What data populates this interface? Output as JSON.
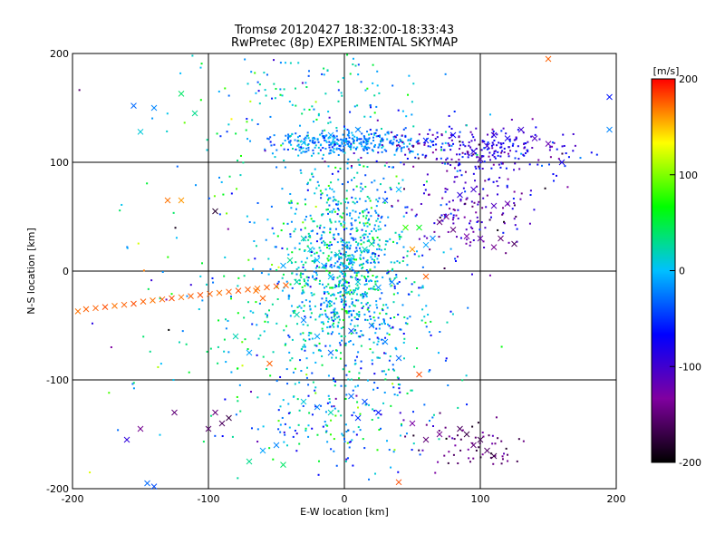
{
  "chart_data": {
    "type": "scatter",
    "title": "Tromsø 20120427 18:32:00-18:33:43",
    "subtitle": "RwPretec (8p) EXPERIMENTAL SKYMAP",
    "xlabel": "E-W location [km]",
    "ylabel": "N-S location [km]",
    "xlim": [
      -200,
      200
    ],
    "ylim": [
      -200,
      200
    ],
    "x_ticks": [
      "-200",
      "-100",
      "0",
      "100",
      "200"
    ],
    "y_ticks": [
      "-200",
      "-100",
      "0",
      "100",
      "200"
    ],
    "grid": true,
    "grid_lines": [
      -100,
      0,
      100
    ],
    "colorbar": {
      "label": "[m/s]",
      "range": [
        -200,
        200
      ],
      "ticks": [
        "200",
        "100",
        "0",
        "-100",
        "-200"
      ],
      "colormap": [
        "#000000",
        "#8000a0",
        "#0000ff",
        "#00c0ff",
        "#00ff00",
        "#ffff00",
        "#ff0000"
      ]
    },
    "series": [
      {
        "marker": "x",
        "points": [
          [
            -196,
            -37
          ],
          [
            -190,
            -35
          ],
          [
            -183,
            -34
          ],
          [
            -176,
            -33
          ],
          [
            -169,
            -32
          ],
          [
            -162,
            -31
          ],
          [
            -155,
            -30
          ],
          [
            -148,
            -28
          ],
          [
            -141,
            -27
          ],
          [
            -134,
            -26
          ],
          [
            -127,
            -25
          ],
          [
            -120,
            -24
          ],
          [
            -113,
            -23
          ],
          [
            -106,
            -22
          ],
          [
            -99,
            -21
          ],
          [
            -92,
            -20
          ],
          [
            -85,
            -19
          ],
          [
            -78,
            -18
          ],
          [
            -71,
            -17
          ],
          [
            -64,
            -16
          ],
          [
            -57,
            -15
          ],
          [
            -50,
            -14
          ],
          [
            -43,
            -13
          ]
        ],
        "values": [
          170,
          175,
          175,
          180,
          170,
          175,
          180,
          175,
          170,
          175,
          180,
          170,
          175,
          180,
          175,
          170,
          175,
          180,
          175,
          170,
          175,
          180,
          175
        ]
      },
      {
        "marker": "x",
        "points": [
          [
            -155,
            152
          ],
          [
            -140,
            150
          ],
          [
            -120,
            163
          ],
          [
            -110,
            145
          ],
          [
            -150,
            128
          ],
          [
            -30,
            118
          ],
          [
            -10,
            125
          ],
          [
            10,
            130
          ],
          [
            60,
            120
          ],
          [
            80,
            125
          ],
          [
            95,
            110
          ],
          [
            100,
            103
          ],
          [
            105,
            115
          ],
          [
            110,
            125
          ],
          [
            120,
            122
          ],
          [
            130,
            130
          ],
          [
            140,
            122
          ],
          [
            150,
            117
          ],
          [
            95,
            75
          ],
          [
            85,
            70
          ],
          [
            110,
            60
          ],
          [
            120,
            62
          ],
          [
            70,
            45
          ],
          [
            75,
            50
          ],
          [
            80,
            38
          ],
          [
            90,
            32
          ],
          [
            100,
            30
          ],
          [
            110,
            22
          ],
          [
            115,
            30
          ],
          [
            125,
            25
          ],
          [
            30,
            65
          ],
          [
            40,
            75
          ],
          [
            45,
            40
          ],
          [
            55,
            40
          ],
          [
            60,
            24
          ],
          [
            65,
            30
          ],
          [
            -30,
            30
          ],
          [
            -25,
            20
          ],
          [
            -20,
            10
          ],
          [
            -15,
            5
          ],
          [
            -10,
            -5
          ],
          [
            -5,
            15
          ],
          [
            5,
            10
          ],
          [
            10,
            -10
          ],
          [
            15,
            20
          ],
          [
            20,
            25
          ],
          [
            25,
            -15
          ],
          [
            -35,
            -40
          ],
          [
            -30,
            -45
          ],
          [
            -20,
            -60
          ],
          [
            -10,
            -75
          ],
          [
            5,
            -55
          ],
          [
            20,
            -50
          ],
          [
            30,
            -65
          ],
          [
            55,
            -95
          ],
          [
            40,
            -80
          ],
          [
            -55,
            -85
          ],
          [
            -70,
            -75
          ],
          [
            -80,
            -60
          ],
          [
            -60,
            -25
          ],
          [
            -65,
            -18
          ],
          [
            -90,
            -140
          ],
          [
            -95,
            -130
          ],
          [
            -85,
            -135
          ],
          [
            -100,
            -145
          ],
          [
            -30,
            -120
          ],
          [
            -20,
            -125
          ],
          [
            -10,
            -130
          ],
          [
            5,
            -115
          ],
          [
            15,
            -120
          ],
          [
            25,
            -130
          ],
          [
            10,
            -135
          ],
          [
            -50,
            -160
          ],
          [
            -60,
            -165
          ],
          [
            -70,
            -175
          ],
          [
            -45,
            -178
          ],
          [
            85,
            -145
          ],
          [
            90,
            -150
          ],
          [
            95,
            -160
          ],
          [
            100,
            -155
          ],
          [
            105,
            -165
          ],
          [
            110,
            -170
          ],
          [
            70,
            -150
          ],
          [
            60,
            -155
          ],
          [
            50,
            -140
          ],
          [
            40,
            -194
          ],
          [
            -145,
            -195
          ],
          [
            -140,
            -198
          ],
          [
            -160,
            -155
          ],
          [
            -125,
            -130
          ],
          [
            -150,
            -145
          ],
          [
            150,
            195
          ],
          [
            160,
            100
          ],
          [
            195,
            160
          ],
          [
            195,
            130
          ],
          [
            -130,
            65
          ],
          [
            -120,
            65
          ],
          [
            -95,
            55
          ],
          [
            50,
            20
          ],
          [
            60,
            -5
          ],
          [
            -45,
            5
          ],
          [
            -40,
            10
          ],
          [
            -35,
            -10
          ],
          [
            35,
            -10
          ]
        ],
        "values": [
          -30,
          -20,
          40,
          30,
          10,
          0,
          -10,
          -20,
          -60,
          -70,
          -90,
          -110,
          -100,
          -90,
          -80,
          -100,
          -110,
          -120,
          -100,
          -90,
          -110,
          -120,
          -150,
          -140,
          -150,
          -130,
          -120,
          -140,
          -150,
          -160,
          -30,
          0,
          80,
          60,
          -10,
          -20,
          20,
          10,
          0,
          -10,
          5,
          15,
          -5,
          10,
          20,
          30,
          -15,
          20,
          -20,
          -10,
          -30,
          -40,
          -30,
          -20,
          180,
          -30,
          175,
          -10,
          20,
          175,
          170,
          -160,
          -150,
          -170,
          -155,
          10,
          -20,
          20,
          -30,
          -40,
          -60,
          -50,
          -20,
          -10,
          30,
          40,
          -160,
          -170,
          -150,
          -165,
          -155,
          -170,
          -140,
          -150,
          -130,
          180,
          -30,
          -40,
          -90,
          -150,
          -140,
          175,
          -80,
          -60,
          -20,
          170,
          160,
          -180,
          160,
          175,
          -10,
          30,
          20,
          -20
        ]
      }
    ],
    "clusters": [
      {
        "center": [
          0,
          5
        ],
        "spread": [
          22,
          45
        ],
        "count": 900,
        "value_mean": 0,
        "value_sd": 35
      },
      {
        "center": [
          0,
          118
        ],
        "spread": [
          30,
          5
        ],
        "count": 300,
        "value_mean": -20,
        "value_sd": 20
      },
      {
        "center": [
          95,
          112
        ],
        "spread": [
          35,
          12
        ],
        "count": 260,
        "value_mean": -90,
        "value_sd": 30
      },
      {
        "center": [
          95,
          55
        ],
        "spread": [
          25,
          25
        ],
        "count": 160,
        "value_mean": -110,
        "value_sd": 35
      },
      {
        "center": [
          -10,
          150
        ],
        "spread": [
          45,
          30
        ],
        "count": 160,
        "value_mean": 0,
        "value_sd": 40
      },
      {
        "center": [
          0,
          -135
        ],
        "spread": [
          35,
          25
        ],
        "count": 180,
        "value_mean": -10,
        "value_sd": 50
      },
      {
        "center": [
          -40,
          -40
        ],
        "spread": [
          35,
          30
        ],
        "count": 120,
        "value_mean": 20,
        "value_sd": 30
      },
      {
        "center": [
          30,
          -60
        ],
        "spread": [
          30,
          35
        ],
        "count": 100,
        "value_mean": -10,
        "value_sd": 40
      },
      {
        "center": [
          -70,
          60
        ],
        "spread": [
          40,
          60
        ],
        "count": 90,
        "value_mean": 10,
        "value_sd": 60
      },
      {
        "center": [
          95,
          -160
        ],
        "spread": [
          25,
          15
        ],
        "count": 60,
        "value_mean": -150,
        "value_sd": 20
      },
      {
        "center": [
          -150,
          -60
        ],
        "spread": [
          40,
          80
        ],
        "count": 40,
        "value_mean": 20,
        "value_sd": 80
      }
    ]
  }
}
